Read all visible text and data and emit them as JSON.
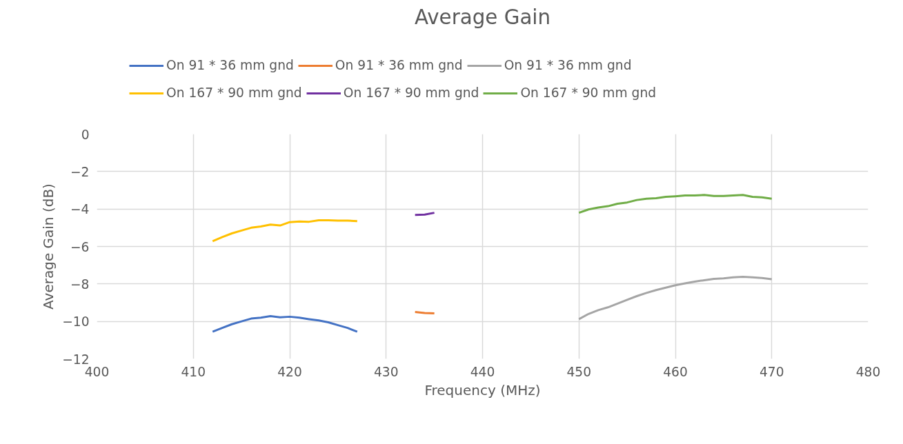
{
  "chart_data": {
    "type": "line",
    "title": "Average Gain",
    "xlabel": "Frequency (MHz)",
    "ylabel": "Average Gain (dB)",
    "xlim": [
      400,
      480
    ],
    "xticks": [
      400,
      410,
      420,
      430,
      440,
      450,
      460,
      470,
      480
    ],
    "ylim": [
      -12,
      0
    ],
    "yticks": [
      -12,
      -10,
      -8,
      -6,
      -4,
      -2,
      0
    ],
    "grid": true,
    "legend": "top",
    "line_style": "solid",
    "marker": "none",
    "series": [
      {
        "name": "On 91 * 36 mm gnd",
        "color": "#4472c4",
        "x": [
          412,
          413,
          414,
          415,
          416,
          417,
          418,
          419,
          420,
          421,
          422,
          423,
          424,
          425,
          426,
          427
        ],
        "values": [
          -10.55,
          -10.35,
          -10.15,
          -10.0,
          -9.85,
          -9.8,
          -9.72,
          -9.78,
          -9.75,
          -9.8,
          -9.88,
          -9.95,
          -10.05,
          -10.2,
          -10.35,
          -10.55
        ]
      },
      {
        "name": "On 91 * 36 mm gnd",
        "color": "#ed7d31",
        "x": [
          433,
          434,
          435
        ],
        "values": [
          -9.5,
          -9.55,
          -9.57
        ]
      },
      {
        "name": "On 91 * 36 mm gnd",
        "color": "#a5a5a5",
        "x": [
          450,
          451,
          452,
          453,
          454,
          455,
          456,
          457,
          458,
          459,
          460,
          461,
          462,
          463,
          464,
          465,
          466,
          467,
          468,
          469,
          470
        ],
        "values": [
          -9.88,
          -9.6,
          -9.4,
          -9.25,
          -9.05,
          -8.85,
          -8.65,
          -8.48,
          -8.33,
          -8.2,
          -8.07,
          -7.97,
          -7.88,
          -7.8,
          -7.73,
          -7.7,
          -7.65,
          -7.62,
          -7.65,
          -7.68,
          -7.75
        ]
      },
      {
        "name": "On 167 * 90 mm gnd",
        "color": "#ffc000",
        "x": [
          412,
          413,
          414,
          415,
          416,
          417,
          418,
          419,
          420,
          421,
          422,
          423,
          424,
          425,
          426,
          427
        ],
        "values": [
          -5.72,
          -5.5,
          -5.3,
          -5.15,
          -5.0,
          -4.93,
          -4.83,
          -4.88,
          -4.7,
          -4.67,
          -4.68,
          -4.6,
          -4.6,
          -4.62,
          -4.62,
          -4.65
        ]
      },
      {
        "name": "On 167 * 90 mm gnd",
        "color": "#7030a0",
        "x": [
          433,
          434,
          435
        ],
        "values": [
          -4.32,
          -4.3,
          -4.2
        ]
      },
      {
        "name": "On 167 * 90 mm gnd",
        "color": "#70ad47",
        "x": [
          450,
          451,
          452,
          453,
          454,
          455,
          456,
          457,
          458,
          459,
          460,
          461,
          462,
          463,
          464,
          465,
          466,
          467,
          468,
          469,
          470
        ],
        "values": [
          -4.2,
          -4.02,
          -3.92,
          -3.85,
          -3.72,
          -3.65,
          -3.52,
          -3.45,
          -3.42,
          -3.35,
          -3.32,
          -3.28,
          -3.28,
          -3.25,
          -3.3,
          -3.3,
          -3.28,
          -3.25,
          -3.35,
          -3.38,
          -3.45
        ]
      }
    ]
  }
}
